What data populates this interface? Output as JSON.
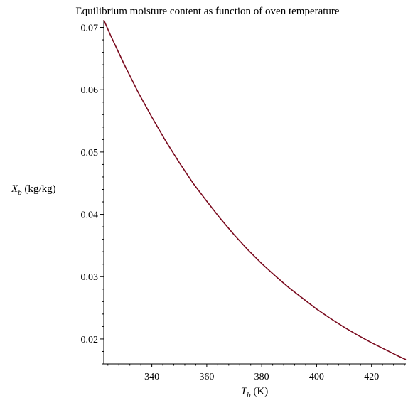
{
  "chart_data": {
    "type": "line",
    "title": "Equilibrium moisture content as function of oven temperature",
    "xlabel": {
      "symbol": "T",
      "subscript": "b",
      "unit": " (K)"
    },
    "ylabel": {
      "symbol": "X",
      "subscript": "b",
      "unit": " (kg/kg)"
    },
    "xlim": [
      322.5,
      432.5
    ],
    "ylim": [
      0.016,
      0.0712
    ],
    "x_ticks": [
      {
        "value": 340,
        "label": "340"
      },
      {
        "value": 360,
        "label": "360"
      },
      {
        "value": 380,
        "label": "380"
      },
      {
        "value": 400,
        "label": "400"
      },
      {
        "value": 420,
        "label": "420"
      }
    ],
    "y_ticks": [
      {
        "value": 0.02,
        "label": "0.02"
      },
      {
        "value": 0.03,
        "label": "0.03"
      },
      {
        "value": 0.04,
        "label": "0.04"
      },
      {
        "value": 0.05,
        "label": "0.05"
      },
      {
        "value": 0.06,
        "label": "0.06"
      },
      {
        "value": 0.07,
        "label": "0.07"
      }
    ],
    "grid": false,
    "line_color": "#7a0a1e",
    "series": [
      {
        "x": [
          322.5,
          325,
          330,
          335,
          340,
          345,
          350,
          355,
          360,
          365,
          370,
          375,
          380,
          385,
          390,
          395,
          400,
          405,
          410,
          415,
          420,
          425,
          430,
          432.5
        ],
        "y": [
          0.0712,
          0.0687,
          0.064,
          0.0596,
          0.0556,
          0.0518,
          0.0483,
          0.045,
          0.0421,
          0.0393,
          0.0367,
          0.0343,
          0.0321,
          0.0301,
          0.0282,
          0.0265,
          0.0248,
          0.0233,
          0.0219,
          0.0206,
          0.0194,
          0.0183,
          0.0172,
          0.0167
        ]
      }
    ]
  }
}
